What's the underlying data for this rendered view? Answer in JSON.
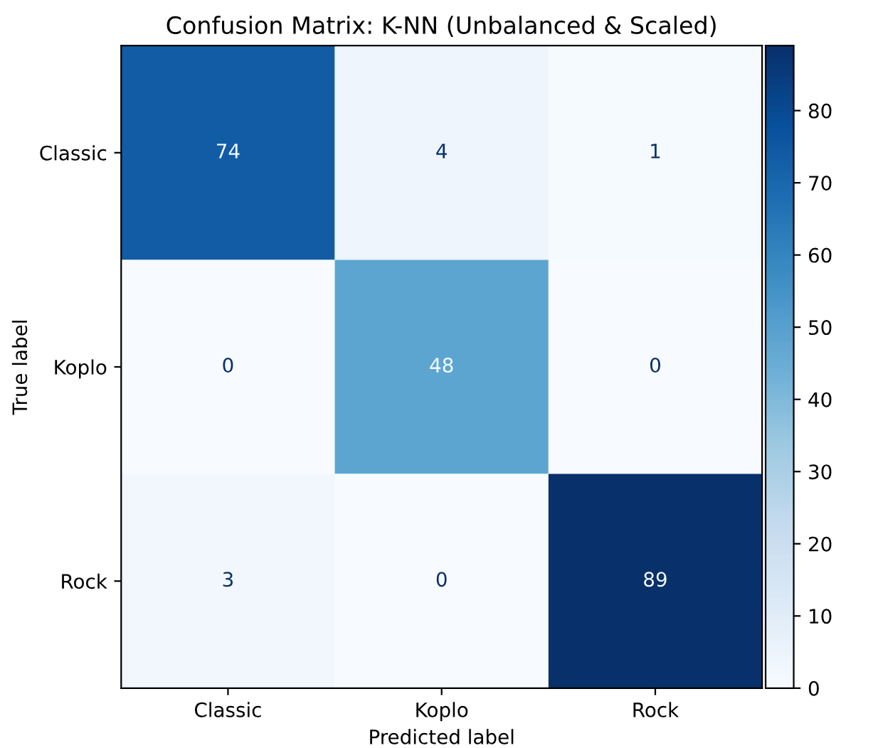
{
  "chart_data": {
    "type": "heatmap",
    "title": "Confusion Matrix: K-NN (Unbalanced & Scaled)",
    "xlabel": "Predicted label",
    "ylabel": "True label",
    "categories": [
      "Classic",
      "Koplo",
      "Rock"
    ],
    "y_categories": [
      "Classic",
      "Koplo",
      "Rock"
    ],
    "cells": [
      [
        74,
        4,
        1
      ],
      [
        0,
        48,
        0
      ],
      [
        3,
        0,
        89
      ]
    ],
    "clim": [
      0,
      89
    ],
    "cticks": [
      0,
      10,
      20,
      30,
      40,
      50,
      60,
      70,
      80
    ],
    "data_labels": true,
    "grid": false
  }
}
